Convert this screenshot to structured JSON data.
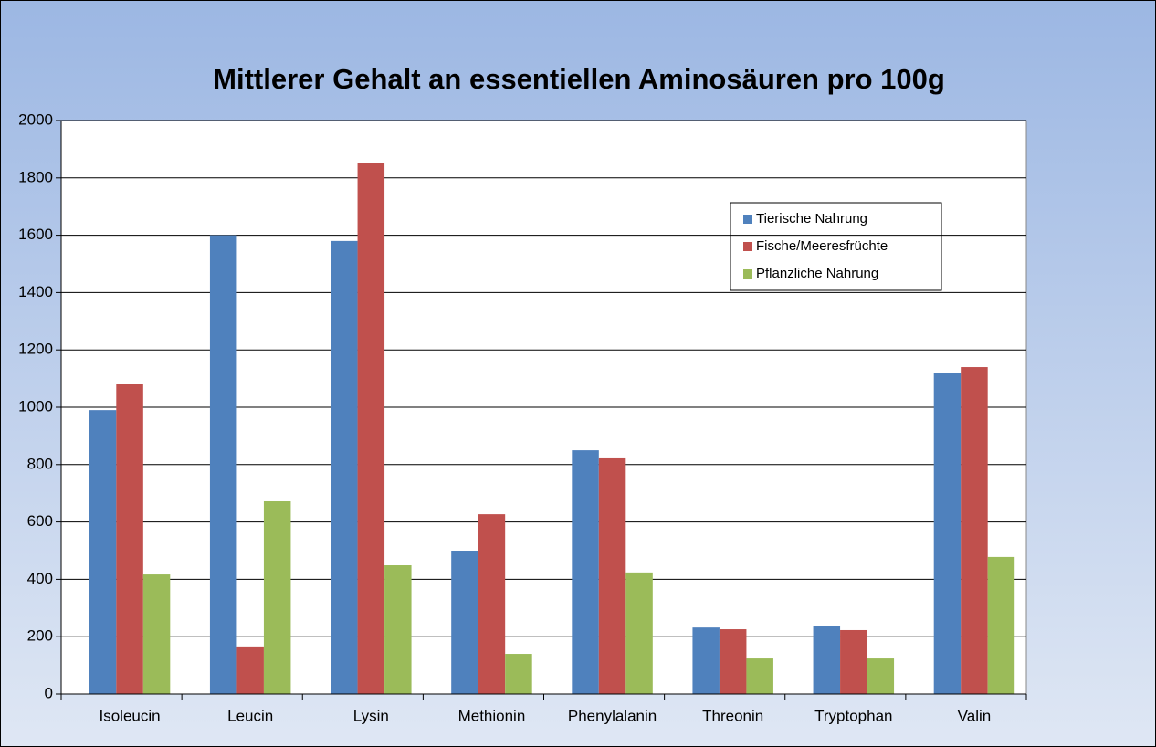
{
  "chart_data": {
    "type": "bar",
    "title": "Mittlerer Gehalt an essentiellen  Aminosäuren pro 100g",
    "categories": [
      "Isoleucin",
      "Leucin",
      "Lysin",
      "Methionin",
      "Phenylalanin",
      "Threonin",
      "Tryptophan",
      "Valin"
    ],
    "series": [
      {
        "name": "Tierische Nahrung",
        "color": "#4f81bd",
        "values": [
          990,
          1600,
          1580,
          500,
          850,
          232,
          236,
          1120
        ]
      },
      {
        "name": "Fische/Meeresfrüchte",
        "color": "#c0504d",
        "values": [
          1080,
          166,
          1853,
          627,
          825,
          226,
          223,
          1140
        ]
      },
      {
        "name": "Pflanzliche Nahrung",
        "color": "#9bbb59",
        "values": [
          417,
          672,
          449,
          140,
          424,
          124,
          124,
          478
        ]
      }
    ],
    "ylim": [
      0,
      2000
    ],
    "yticks": [
      0,
      200,
      400,
      600,
      800,
      1000,
      1200,
      1400,
      1600,
      1800,
      2000
    ],
    "grid": true,
    "legend": "upper right"
  }
}
